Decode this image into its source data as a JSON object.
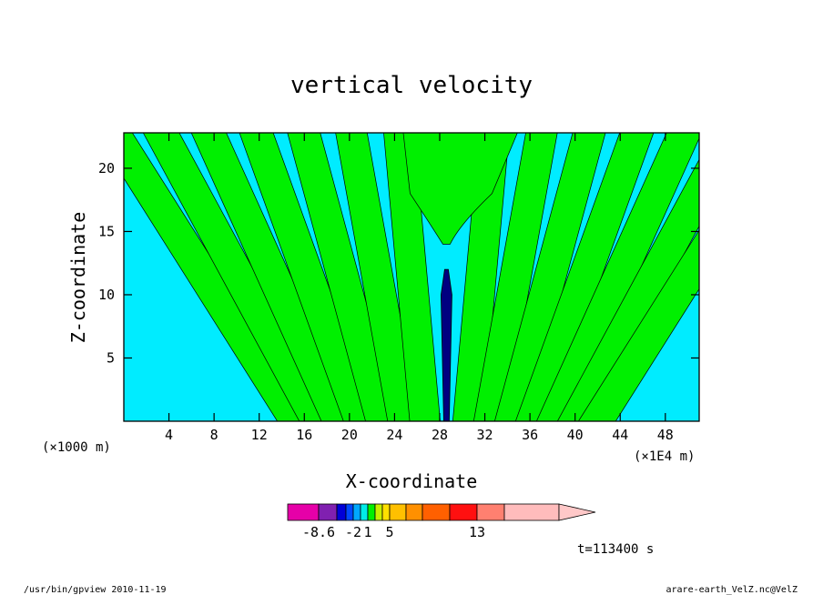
{
  "chart_data": {
    "type": "heatmap",
    "title": "vertical velocity",
    "xlabel": "X-coordinate",
    "ylabel": "Z-coordinate",
    "x_unit_left": "(×1000 m)",
    "x_unit_right": "(×1E4 m)",
    "xlim": [
      0,
      51
    ],
    "ylim": [
      0,
      22.8
    ],
    "x_ticks": [
      4,
      8,
      12,
      16,
      20,
      24,
      28,
      32,
      36,
      40,
      44,
      48
    ],
    "x_tick_labels": [
      "4",
      "8",
      "12",
      "16",
      "20",
      "24",
      "28",
      "32",
      "36",
      "40",
      "44",
      "48"
    ],
    "y_ticks": [
      5,
      10,
      15,
      20
    ],
    "y_tick_labels": [
      "5",
      "10",
      "15",
      "20"
    ],
    "time_label": "t=113400 s",
    "colorbar": {
      "colors": [
        "#e600a8",
        "#8020b0",
        "#0000d8",
        "#0048ff",
        "#00a8ff",
        "#00ece8",
        "#00f000",
        "#c8f000",
        "#ffe000",
        "#ffc000",
        "#ff9000",
        "#ff6000",
        "#ff1010",
        "#ff8070",
        "#ffbcbc",
        "#ffc8c8"
      ],
      "labels": [
        {
          "text": "-8.6",
          "index": 1
        },
        {
          "text": "-2",
          "index": 4
        },
        {
          "text": "1",
          "index": 6
        },
        {
          "text": "5",
          "index": 9
        },
        {
          "text": "13",
          "index": 13
        }
      ]
    },
    "field": {
      "background_color": "#00ecff",
      "positive_color": "#00f000",
      "core_color": "#000080",
      "plume_x": 28.6
    }
  },
  "footer": {
    "left": "/usr/bin/gpview   2010-11-19",
    "right": "arare-earth_VelZ.nc@VelZ"
  }
}
